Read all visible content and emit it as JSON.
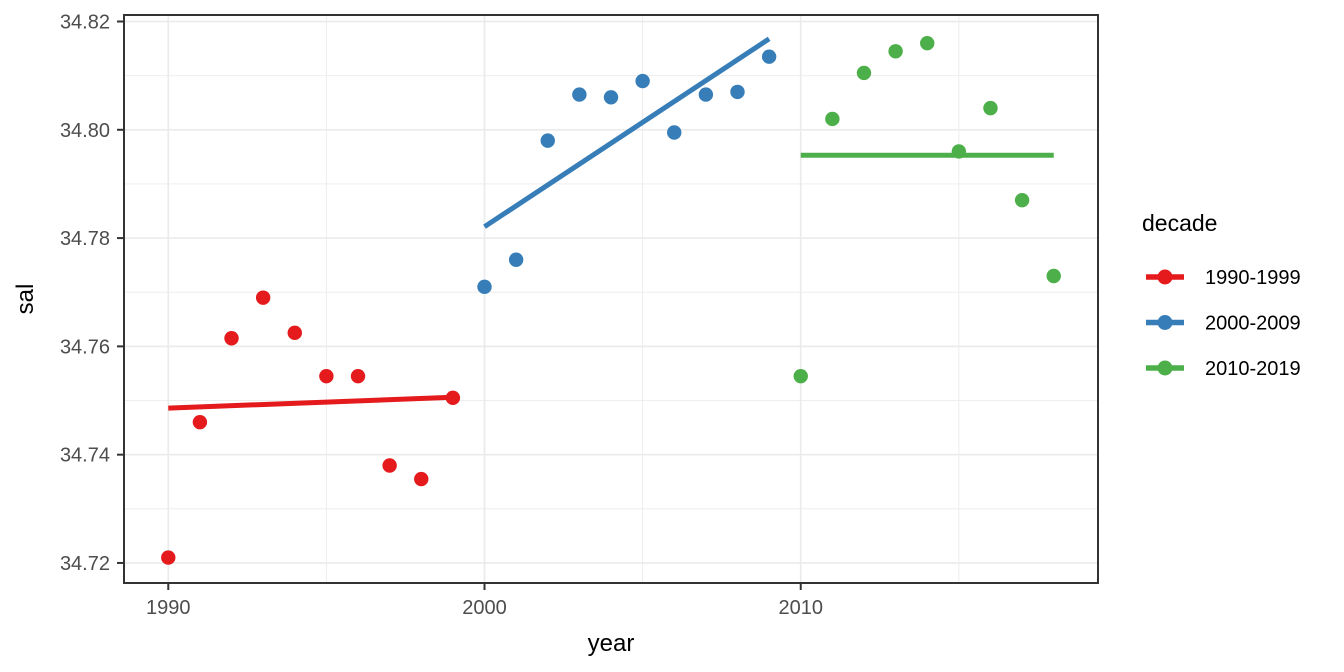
{
  "chart_data": {
    "type": "scatter",
    "title": "",
    "xlabel": "year",
    "ylabel": "sal",
    "legend_title": "decade",
    "legend_position": "right",
    "grid": true,
    "xlim": [
      1988.6,
      2019.4
    ],
    "ylim": [
      34.7163,
      34.8212
    ],
    "x_ticks": [
      {
        "value": 1990,
        "label": "1990"
      },
      {
        "value": 2000,
        "label": "2000"
      },
      {
        "value": 2010,
        "label": "2010"
      }
    ],
    "x_minor_gridlines": [
      1995,
      2005,
      2015
    ],
    "y_ticks": [
      {
        "value": 34.72,
        "label": "34.72"
      },
      {
        "value": 34.74,
        "label": "34.74"
      },
      {
        "value": 34.76,
        "label": "34.76"
      },
      {
        "value": 34.78,
        "label": "34.78"
      },
      {
        "value": 34.8,
        "label": "34.80"
      },
      {
        "value": 34.82,
        "label": "34.82"
      }
    ],
    "y_minor_gridlines": [
      34.73,
      34.75,
      34.77,
      34.79,
      34.81
    ],
    "series": [
      {
        "name": "1990-1999",
        "color": "#E41A1C",
        "x": [
          1990,
          1991,
          1992,
          1993,
          1994,
          1995,
          1996,
          1997,
          1998,
          1999
        ],
        "y": [
          34.721,
          34.746,
          34.7615,
          34.769,
          34.7625,
          34.7545,
          34.7545,
          34.738,
          34.7355,
          34.7505
        ],
        "trend": {
          "x": [
            1990,
            1999
          ],
          "y": [
            34.7486,
            34.7506
          ]
        }
      },
      {
        "name": "2000-2009",
        "color": "#377EB8",
        "x": [
          2000,
          2001,
          2002,
          2003,
          2004,
          2005,
          2006,
          2007,
          2008,
          2009
        ],
        "y": [
          34.771,
          34.776,
          34.798,
          34.8065,
          34.806,
          34.809,
          34.7995,
          34.8065,
          34.807,
          34.8135
        ],
        "trend": {
          "x": [
            2000,
            2009
          ],
          "y": [
            34.7821,
            34.8168
          ]
        }
      },
      {
        "name": "2010-2019",
        "color": "#4DAF4A",
        "x": [
          2010,
          2011,
          2012,
          2013,
          2014,
          2015,
          2016,
          2017,
          2018
        ],
        "y": [
          34.7545,
          34.802,
          34.8105,
          34.8145,
          34.816,
          34.796,
          34.804,
          34.787,
          34.773
        ],
        "trend": {
          "x": [
            2010,
            2018
          ],
          "y": [
            34.7953,
            34.7953
          ]
        }
      }
    ],
    "colors": {
      "panel_border": "#333333",
      "grid_major": "#ebebeb",
      "grid_minor": "#ebebeb",
      "tick_mark": "#333333",
      "tick_text": "#4d4d4d",
      "background": "#ffffff"
    }
  }
}
